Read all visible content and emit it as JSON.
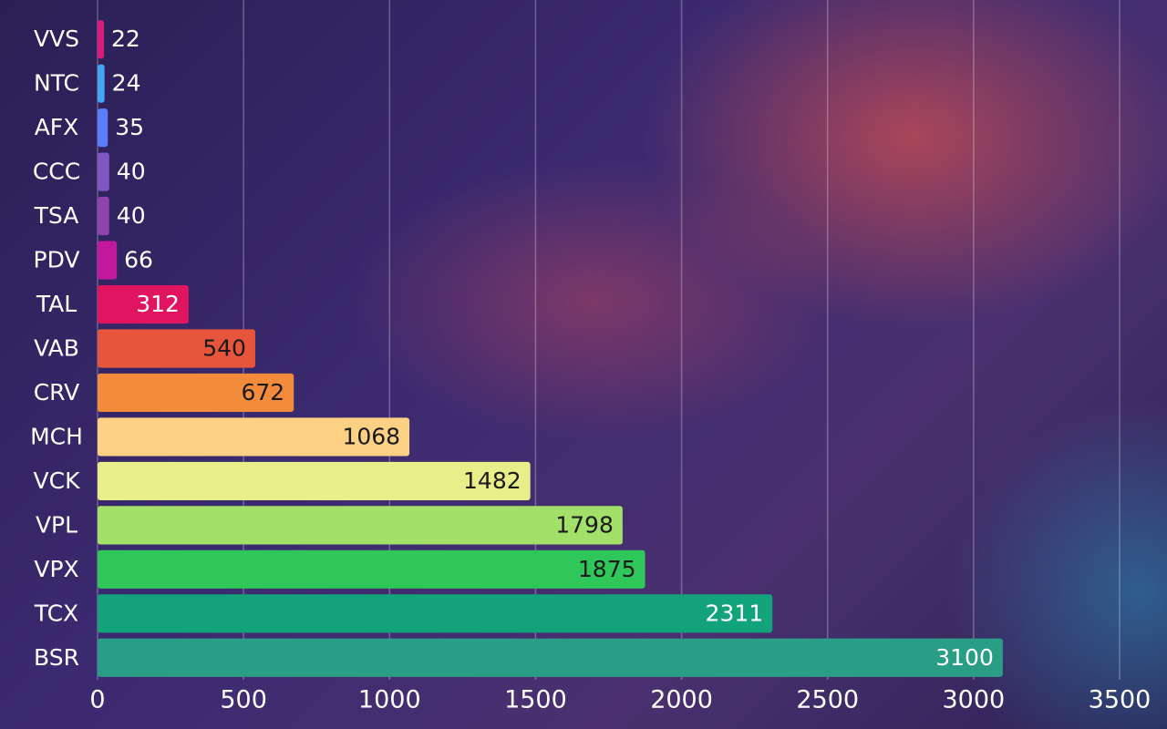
{
  "chart_data": {
    "type": "bar",
    "orientation": "horizontal",
    "categories": [
      "VVS",
      "NTC",
      "AFX",
      "CCC",
      "TSA",
      "PDV",
      "TAL",
      "VAB",
      "CRV",
      "MCH",
      "VCK",
      "VPL",
      "VPX",
      "TCX",
      "BSR"
    ],
    "values": [
      22,
      24,
      35,
      40,
      40,
      66,
      312,
      540,
      672,
      1068,
      1482,
      1798,
      1875,
      2311,
      3100
    ],
    "colors": [
      "#d81b7a",
      "#42a5f5",
      "#5c7cfa",
      "#7e57c2",
      "#8e44ad",
      "#c2189b",
      "#e0145f",
      "#e8553d",
      "#f28c3c",
      "#fdd183",
      "#e8ee8a",
      "#a3e06a",
      "#2fc65a",
      "#12a37a",
      "#2a9d86"
    ],
    "xlim": [
      0,
      3500
    ],
    "xticks": [
      0,
      500,
      1000,
      1500,
      2000,
      2500,
      3000,
      3500
    ],
    "grid": true
  }
}
